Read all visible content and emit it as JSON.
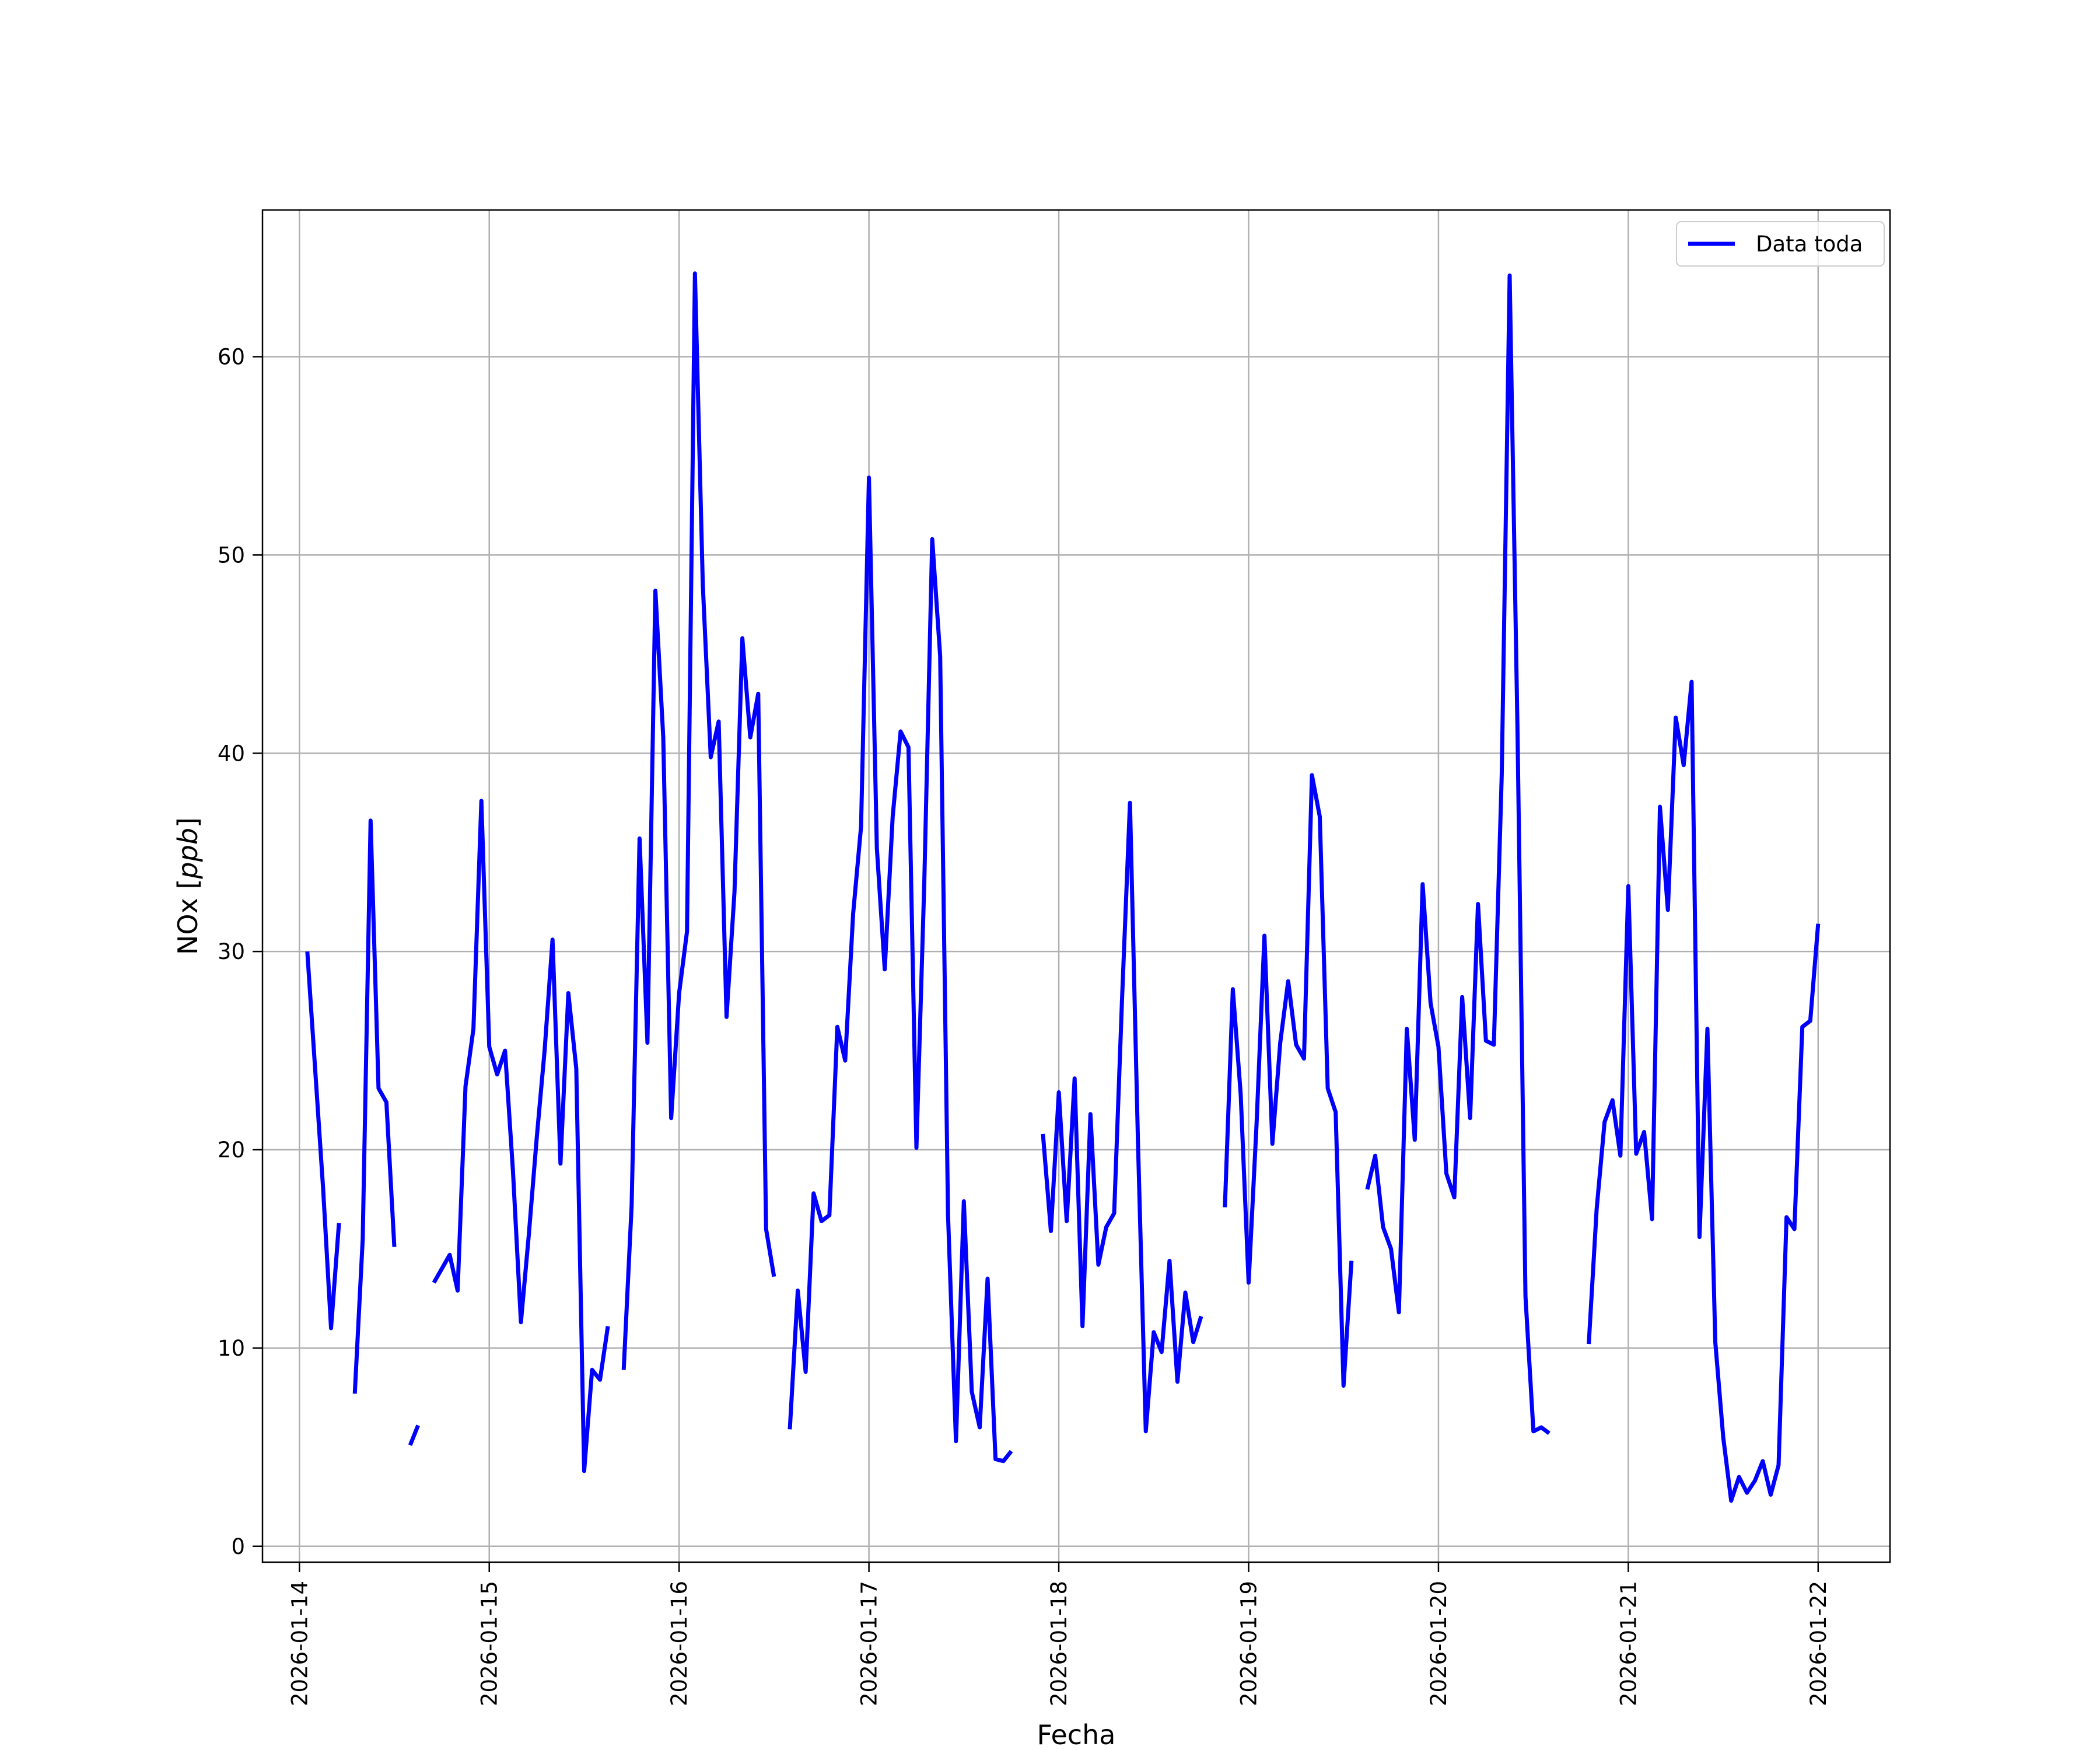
{
  "chart_data": {
    "type": "line",
    "xlabel": "Fecha",
    "ylabel": "NOx [ppb]",
    "ylabel_parts": [
      "NOx ",
      "[",
      "ppb",
      "]"
    ],
    "xlim": [
      "2026-01-13T19:20",
      "2026-01-22T09:05"
    ],
    "ylim": [
      -0.8,
      67.4
    ],
    "x_ticks": [
      "2026-01-14",
      "2026-01-15",
      "2026-01-16",
      "2026-01-17",
      "2026-01-18",
      "2026-01-19",
      "2026-01-20",
      "2026-01-21",
      "2026-01-22"
    ],
    "y_ticks": [
      0,
      10,
      20,
      30,
      40,
      50,
      60
    ],
    "grid": true,
    "legend": {
      "position": "top-right"
    },
    "series": [
      {
        "name": "Data toda",
        "color": "#0000ff",
        "points": [
          [
            "2026-01-14T01:00",
            30.0
          ],
          [
            "2026-01-14T03:00",
            18.0
          ],
          [
            "2026-01-14T04:00",
            11.0
          ],
          [
            "2026-01-14T05:00",
            16.3
          ],
          [
            "2026-01-14T06:00",
            null
          ],
          [
            "2026-01-14T07:00",
            7.7
          ],
          [
            "2026-01-14T08:00",
            15.5
          ],
          [
            "2026-01-14T09:00",
            36.6
          ],
          [
            "2026-01-14T10:00",
            23.1
          ],
          [
            "2026-01-14T11:00",
            22.4
          ],
          [
            "2026-01-14T12:00",
            15.1
          ],
          [
            "2026-01-14T13:00",
            null
          ],
          [
            "2026-01-14T14:00",
            5.1
          ],
          [
            "2026-01-14T15:00",
            6.1
          ],
          [
            "2026-01-14T16:00",
            null
          ],
          [
            "2026-01-14T17:00",
            13.3
          ],
          [
            "2026-01-14T18:00",
            14.0
          ],
          [
            "2026-01-14T19:00",
            14.7
          ],
          [
            "2026-01-14T20:00",
            12.9
          ],
          [
            "2026-01-14T21:00",
            23.2
          ],
          [
            "2026-01-14T22:00",
            26.1
          ],
          [
            "2026-01-14T23:00",
            37.6
          ],
          [
            "2026-01-15T00:00",
            25.2
          ],
          [
            "2026-01-15T01:00",
            23.8
          ],
          [
            "2026-01-15T02:00",
            25.0
          ],
          [
            "2026-01-15T03:00",
            18.9
          ],
          [
            "2026-01-15T04:00",
            11.3
          ],
          [
            "2026-01-15T05:00",
            15.7
          ],
          [
            "2026-01-15T06:00",
            20.6
          ],
          [
            "2026-01-15T07:00",
            25.0
          ],
          [
            "2026-01-15T08:00",
            30.6
          ],
          [
            "2026-01-15T09:00",
            19.3
          ],
          [
            "2026-01-15T10:00",
            27.9
          ],
          [
            "2026-01-15T11:00",
            24.1
          ],
          [
            "2026-01-15T12:00",
            3.8
          ],
          [
            "2026-01-15T13:00",
            8.9
          ],
          [
            "2026-01-15T14:00",
            8.4
          ],
          [
            "2026-01-15T15:00",
            11.1
          ],
          [
            "2026-01-15T16:00",
            null
          ],
          [
            "2026-01-15T17:00",
            8.9
          ],
          [
            "2026-01-15T18:00",
            17.2
          ],
          [
            "2026-01-15T19:00",
            35.7
          ],
          [
            "2026-01-15T20:00",
            25.4
          ],
          [
            "2026-01-15T21:00",
            48.2
          ],
          [
            "2026-01-15T22:00",
            40.8
          ],
          [
            "2026-01-15T23:00",
            21.6
          ],
          [
            "2026-01-16T00:00",
            27.9
          ],
          [
            "2026-01-16T01:00",
            31.0
          ],
          [
            "2026-01-16T02:00",
            64.2
          ],
          [
            "2026-01-16T03:00",
            48.5
          ],
          [
            "2026-01-16T04:00",
            39.8
          ],
          [
            "2026-01-16T05:00",
            41.6
          ],
          [
            "2026-01-16T06:00",
            26.7
          ],
          [
            "2026-01-16T07:00",
            33.0
          ],
          [
            "2026-01-16T08:00",
            45.8
          ],
          [
            "2026-01-16T09:00",
            40.8
          ],
          [
            "2026-01-16T10:00",
            43.0
          ],
          [
            "2026-01-16T11:00",
            16.0
          ],
          [
            "2026-01-16T12:00",
            13.6
          ],
          [
            "2026-01-16T13:00",
            null
          ],
          [
            "2026-01-16T14:00",
            5.9
          ],
          [
            "2026-01-16T15:00",
            12.9
          ],
          [
            "2026-01-16T16:00",
            8.8
          ],
          [
            "2026-01-16T17:00",
            17.8
          ],
          [
            "2026-01-16T18:00",
            16.4
          ],
          [
            "2026-01-16T19:00",
            16.7
          ],
          [
            "2026-01-16T20:00",
            26.2
          ],
          [
            "2026-01-16T21:00",
            24.5
          ],
          [
            "2026-01-16T22:00",
            31.9
          ],
          [
            "2026-01-16T23:00",
            36.3
          ],
          [
            "2026-01-17T00:00",
            53.9
          ],
          [
            "2026-01-17T01:00",
            35.2
          ],
          [
            "2026-01-17T02:00",
            29.1
          ],
          [
            "2026-01-17T03:00",
            36.8
          ],
          [
            "2026-01-17T04:00",
            41.1
          ],
          [
            "2026-01-17T05:00",
            40.3
          ],
          [
            "2026-01-17T06:00",
            20.1
          ],
          [
            "2026-01-17T07:00",
            33.5
          ],
          [
            "2026-01-17T08:00",
            50.8
          ],
          [
            "2026-01-17T09:00",
            44.9
          ],
          [
            "2026-01-17T10:00",
            16.7
          ],
          [
            "2026-01-17T11:00",
            5.3
          ],
          [
            "2026-01-17T12:00",
            17.4
          ],
          [
            "2026-01-17T13:00",
            7.8
          ],
          [
            "2026-01-17T14:00",
            6.0
          ],
          [
            "2026-01-17T15:00",
            13.5
          ],
          [
            "2026-01-17T16:00",
            4.4
          ],
          [
            "2026-01-17T17:00",
            4.3
          ],
          [
            "2026-01-17T18:00",
            4.8
          ],
          [
            "2026-01-17T19:00",
            null
          ],
          [
            "2026-01-17T22:00",
            20.8
          ],
          [
            "2026-01-17T23:00",
            15.9
          ],
          [
            "2026-01-18T00:00",
            22.9
          ],
          [
            "2026-01-18T01:00",
            16.4
          ],
          [
            "2026-01-18T02:00",
            23.6
          ],
          [
            "2026-01-18T03:00",
            11.1
          ],
          [
            "2026-01-18T04:00",
            21.8
          ],
          [
            "2026-01-18T05:00",
            14.2
          ],
          [
            "2026-01-18T06:00",
            16.1
          ],
          [
            "2026-01-18T07:00",
            16.8
          ],
          [
            "2026-01-18T08:00",
            27.6
          ],
          [
            "2026-01-18T09:00",
            37.5
          ],
          [
            "2026-01-18T10:00",
            20.5
          ],
          [
            "2026-01-18T11:00",
            5.8
          ],
          [
            "2026-01-18T12:00",
            10.8
          ],
          [
            "2026-01-18T13:00",
            9.8
          ],
          [
            "2026-01-18T14:00",
            14.4
          ],
          [
            "2026-01-18T15:00",
            8.3
          ],
          [
            "2026-01-18T16:00",
            12.8
          ],
          [
            "2026-01-18T17:00",
            10.3
          ],
          [
            "2026-01-18T18:00",
            11.6
          ],
          [
            "2026-01-18T19:00",
            null
          ],
          [
            "2026-01-18T21:00",
            17.1
          ],
          [
            "2026-01-18T22:00",
            28.1
          ],
          [
            "2026-01-18T23:00",
            22.8
          ],
          [
            "2026-01-19T00:00",
            13.3
          ],
          [
            "2026-01-19T01:00",
            21.3
          ],
          [
            "2026-01-19T02:00",
            30.8
          ],
          [
            "2026-01-19T03:00",
            20.3
          ],
          [
            "2026-01-19T04:00",
            25.4
          ],
          [
            "2026-01-19T05:00",
            28.5
          ],
          [
            "2026-01-19T06:00",
            25.3
          ],
          [
            "2026-01-19T07:00",
            24.6
          ],
          [
            "2026-01-19T08:00",
            38.9
          ],
          [
            "2026-01-19T09:00",
            36.8
          ],
          [
            "2026-01-19T10:00",
            23.1
          ],
          [
            "2026-01-19T11:00",
            21.9
          ],
          [
            "2026-01-19T12:00",
            8.1
          ],
          [
            "2026-01-19T13:00",
            14.4
          ],
          [
            "2026-01-19T14:00",
            null
          ],
          [
            "2026-01-19T15:00",
            18.0
          ],
          [
            "2026-01-19T16:00",
            19.7
          ],
          [
            "2026-01-19T17:00",
            16.1
          ],
          [
            "2026-01-19T18:00",
            15.0
          ],
          [
            "2026-01-19T19:00",
            11.8
          ],
          [
            "2026-01-19T20:00",
            26.1
          ],
          [
            "2026-01-19T21:00",
            20.5
          ],
          [
            "2026-01-19T22:00",
            33.4
          ],
          [
            "2026-01-19T23:00",
            27.4
          ],
          [
            "2026-01-20T00:00",
            25.2
          ],
          [
            "2026-01-20T01:00",
            18.8
          ],
          [
            "2026-01-20T02:00",
            17.6
          ],
          [
            "2026-01-20T03:00",
            27.7
          ],
          [
            "2026-01-20T04:00",
            21.6
          ],
          [
            "2026-01-20T05:00",
            32.4
          ],
          [
            "2026-01-20T06:00",
            25.5
          ],
          [
            "2026-01-20T07:00",
            25.3
          ],
          [
            "2026-01-20T08:00",
            38.9
          ],
          [
            "2026-01-20T09:00",
            64.1
          ],
          [
            "2026-01-20T10:00",
            41.0
          ],
          [
            "2026-01-20T11:00",
            12.6
          ],
          [
            "2026-01-20T12:00",
            5.8
          ],
          [
            "2026-01-20T13:00",
            6.0
          ],
          [
            "2026-01-20T14:00",
            5.7
          ],
          [
            "2026-01-20T15:00",
            null
          ],
          [
            "2026-01-20T19:00",
            10.2
          ],
          [
            "2026-01-20T20:00",
            17.0
          ],
          [
            "2026-01-20T21:00",
            21.4
          ],
          [
            "2026-01-20T22:00",
            22.5
          ],
          [
            "2026-01-20T23:00",
            19.7
          ],
          [
            "2026-01-21T00:00",
            33.3
          ],
          [
            "2026-01-21T01:00",
            19.8
          ],
          [
            "2026-01-21T02:00",
            20.9
          ],
          [
            "2026-01-21T03:00",
            16.5
          ],
          [
            "2026-01-21T04:00",
            37.3
          ],
          [
            "2026-01-21T05:00",
            32.1
          ],
          [
            "2026-01-21T06:00",
            41.8
          ],
          [
            "2026-01-21T07:00",
            39.4
          ],
          [
            "2026-01-21T08:00",
            43.6
          ],
          [
            "2026-01-21T09:00",
            15.6
          ],
          [
            "2026-01-21T10:00",
            26.1
          ],
          [
            "2026-01-21T11:00",
            10.3
          ],
          [
            "2026-01-21T12:00",
            5.5
          ],
          [
            "2026-01-21T13:00",
            2.3
          ],
          [
            "2026-01-21T14:00",
            3.5
          ],
          [
            "2026-01-21T15:00",
            2.7
          ],
          [
            "2026-01-21T16:00",
            3.3
          ],
          [
            "2026-01-21T17:00",
            4.3
          ],
          [
            "2026-01-21T18:00",
            2.6
          ],
          [
            "2026-01-21T19:00",
            4.1
          ],
          [
            "2026-01-21T20:00",
            16.6
          ],
          [
            "2026-01-21T21:00",
            16.0
          ],
          [
            "2026-01-21T22:00",
            26.2
          ],
          [
            "2026-01-21T23:00",
            26.5
          ],
          [
            "2026-01-22T00:00",
            31.4
          ]
        ]
      }
    ]
  }
}
